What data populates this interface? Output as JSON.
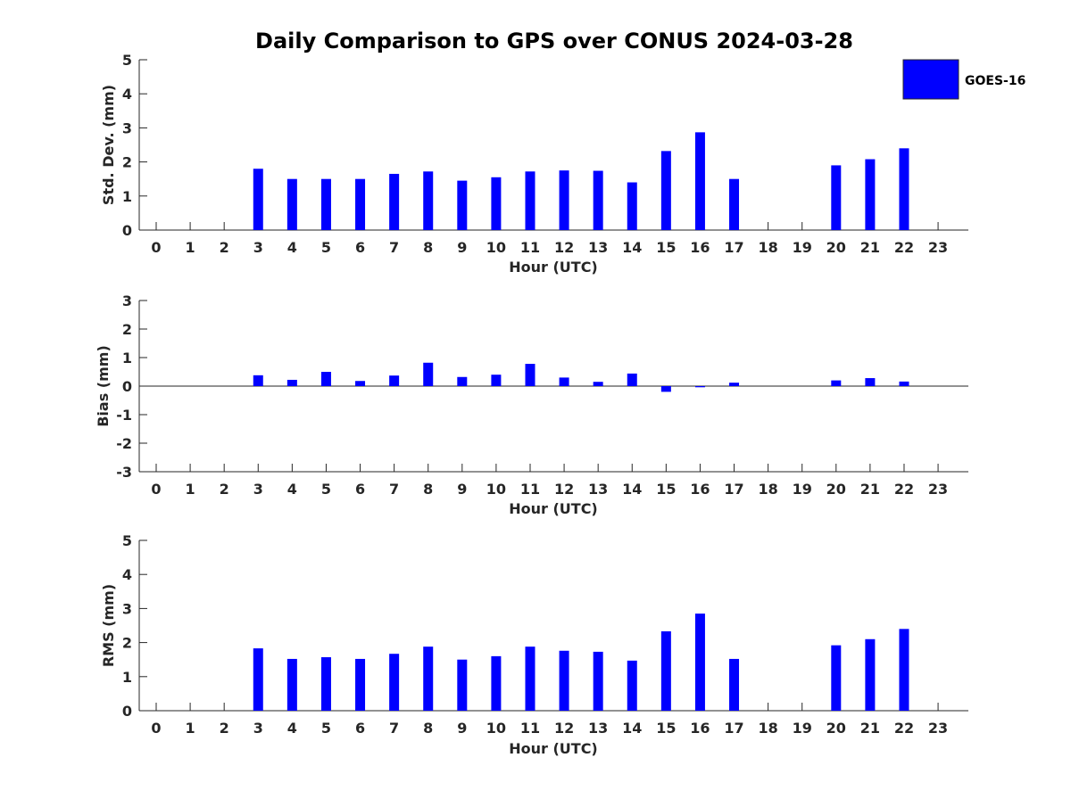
{
  "title": "Daily Comparison to GPS over CONUS 2024-03-28",
  "legend": {
    "label": "GOES-16",
    "color": "#0000ff"
  },
  "chart_data": [
    {
      "type": "bar",
      "title": "Daily Comparison to GPS over CONUS 2024-03-28",
      "xlabel": "Hour (UTC)",
      "ylabel": "Std. Dev. (mm)",
      "ylim": [
        0,
        5
      ],
      "yticks": [
        "0",
        "1",
        "2",
        "3",
        "4",
        "5"
      ],
      "categories": [
        "0",
        "1",
        "2",
        "3",
        "4",
        "5",
        "6",
        "7",
        "8",
        "9",
        "10",
        "11",
        "12",
        "13",
        "14",
        "15",
        "16",
        "17",
        "18",
        "19",
        "20",
        "21",
        "22",
        "23"
      ],
      "series": [
        {
          "name": "GOES-16",
          "color": "#0000ff",
          "values": [
            null,
            null,
            null,
            1.8,
            1.5,
            1.5,
            1.5,
            1.65,
            1.72,
            1.45,
            1.55,
            1.72,
            1.75,
            1.74,
            1.4,
            2.32,
            2.87,
            1.5,
            null,
            null,
            1.9,
            2.08,
            2.4,
            null
          ]
        }
      ]
    },
    {
      "type": "bar",
      "xlabel": "Hour (UTC)",
      "ylabel": "Bias (mm)",
      "ylim": [
        -3,
        3
      ],
      "yticks": [
        "-3",
        "-2",
        "-1",
        "0",
        "1",
        "2",
        "3"
      ],
      "categories": [
        "0",
        "1",
        "2",
        "3",
        "4",
        "5",
        "6",
        "7",
        "8",
        "9",
        "10",
        "11",
        "12",
        "13",
        "14",
        "15",
        "16",
        "17",
        "18",
        "19",
        "20",
        "21",
        "22",
        "23"
      ],
      "series": [
        {
          "name": "GOES-16",
          "color": "#0000ff",
          "values": [
            null,
            null,
            null,
            0.38,
            0.22,
            0.5,
            0.18,
            0.37,
            0.82,
            0.32,
            0.4,
            0.78,
            0.3,
            0.15,
            0.44,
            -0.2,
            -0.04,
            0.12,
            null,
            null,
            0.2,
            0.28,
            0.16,
            null
          ]
        }
      ]
    },
    {
      "type": "bar",
      "xlabel": "Hour (UTC)",
      "ylabel": "RMS (mm)",
      "ylim": [
        0,
        5
      ],
      "yticks": [
        "0",
        "1",
        "2",
        "3",
        "4",
        "5"
      ],
      "categories": [
        "0",
        "1",
        "2",
        "3",
        "4",
        "5",
        "6",
        "7",
        "8",
        "9",
        "10",
        "11",
        "12",
        "13",
        "14",
        "15",
        "16",
        "17",
        "18",
        "19",
        "20",
        "21",
        "22",
        "23"
      ],
      "series": [
        {
          "name": "GOES-16",
          "color": "#0000ff",
          "values": [
            null,
            null,
            null,
            1.83,
            1.52,
            1.57,
            1.52,
            1.67,
            1.88,
            1.5,
            1.6,
            1.88,
            1.76,
            1.73,
            1.47,
            2.33,
            2.85,
            1.52,
            null,
            null,
            1.92,
            2.1,
            2.4,
            null
          ]
        }
      ]
    }
  ]
}
